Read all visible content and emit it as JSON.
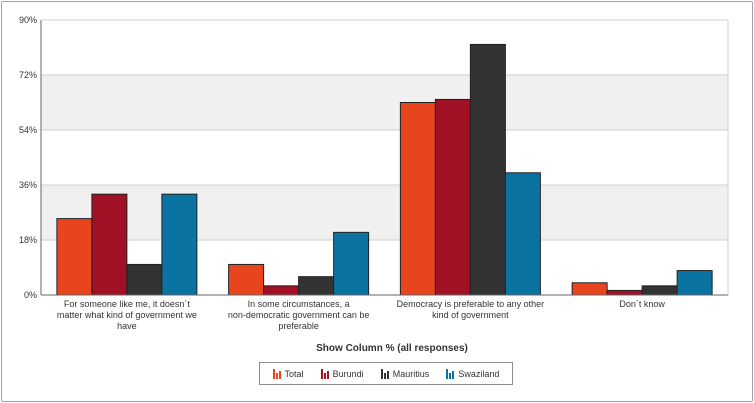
{
  "chart_data": {
    "type": "bar",
    "title": "",
    "xlabel": "Show Column % (all responses)",
    "ylabel": "",
    "ylim": [
      0,
      90
    ],
    "yticks": [
      "0%",
      "18%",
      "36%",
      "54%",
      "72%",
      "90%"
    ],
    "ytick_values": [
      0,
      18,
      36,
      54,
      72,
      90
    ],
    "grid": true,
    "legend_position": "bottom",
    "categories": [
      [
        "For someone like me, it doesn´t",
        "matter what kind of government we",
        "have"
      ],
      [
        "In some circumstances, a",
        "non-democratic government can be",
        "preferable"
      ],
      [
        "Democracy is preferable to any other",
        "kind of government"
      ],
      [
        "Don´t know"
      ]
    ],
    "series": [
      {
        "name": "Total",
        "color": "#e8451e",
        "values": [
          25,
          10,
          63,
          4
        ]
      },
      {
        "name": "Burundi",
        "color": "#a01125",
        "values": [
          33,
          3,
          64,
          1.5
        ]
      },
      {
        "name": "Mauritius",
        "color": "#333333",
        "values": [
          10,
          6,
          82,
          3
        ]
      },
      {
        "name": "Swaziland",
        "color": "#0a73a2",
        "values": [
          33,
          20.5,
          40,
          8
        ]
      }
    ]
  }
}
